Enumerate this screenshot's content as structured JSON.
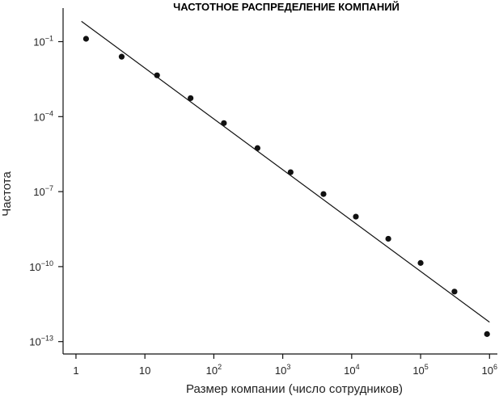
{
  "chart_data": {
    "type": "scatter",
    "title": "ЧАСТОТНОЕ РАСПРЕДЕЛЕНИЕ КОМПАНИЙ",
    "xlabel": "Размер компании (число сотрудников)",
    "ylabel": "Частота",
    "x_scale": "log",
    "y_scale": "log",
    "xlim": [
      0.65,
      1300000
    ],
    "ylim": [
      3.2e-14,
      2.2
    ],
    "x_ticks": [
      {
        "value": 1,
        "base": "1",
        "sup": ""
      },
      {
        "value": 10,
        "base": "10",
        "sup": ""
      },
      {
        "value": 100,
        "base": "10",
        "sup": "2"
      },
      {
        "value": 1000,
        "base": "10",
        "sup": "3"
      },
      {
        "value": 10000,
        "base": "10",
        "sup": "4"
      },
      {
        "value": 100000,
        "base": "10",
        "sup": "5"
      },
      {
        "value": 1000000,
        "base": "10",
        "sup": "6"
      }
    ],
    "y_ticks": [
      {
        "value": 0.1,
        "base": "10",
        "sup": "−1"
      },
      {
        "value": 0.0001,
        "base": "10",
        "sup": "−4"
      },
      {
        "value": 1e-07,
        "base": "10",
        "sup": "−7"
      },
      {
        "value": 1e-10,
        "base": "10",
        "sup": "−10"
      },
      {
        "value": 1e-13,
        "base": "10",
        "sup": "−13"
      }
    ],
    "series": [
      {
        "x": [
          1.4,
          4.6,
          15,
          46,
          140,
          430,
          1300,
          3900,
          11500,
          34000,
          100000,
          310000,
          920000
        ],
        "y": [
          0.13,
          0.025,
          0.0045,
          0.00055,
          5.5e-05,
          5.5e-06,
          6e-07,
          8e-08,
          1e-08,
          1.3e-09,
          1.4e-10,
          1e-11,
          2e-13
        ]
      }
    ],
    "fit_line": {
      "x": [
        1.2,
        1000000
      ],
      "y": [
        0.65,
        6e-13
      ]
    },
    "grid": false,
    "legend": "none"
  }
}
